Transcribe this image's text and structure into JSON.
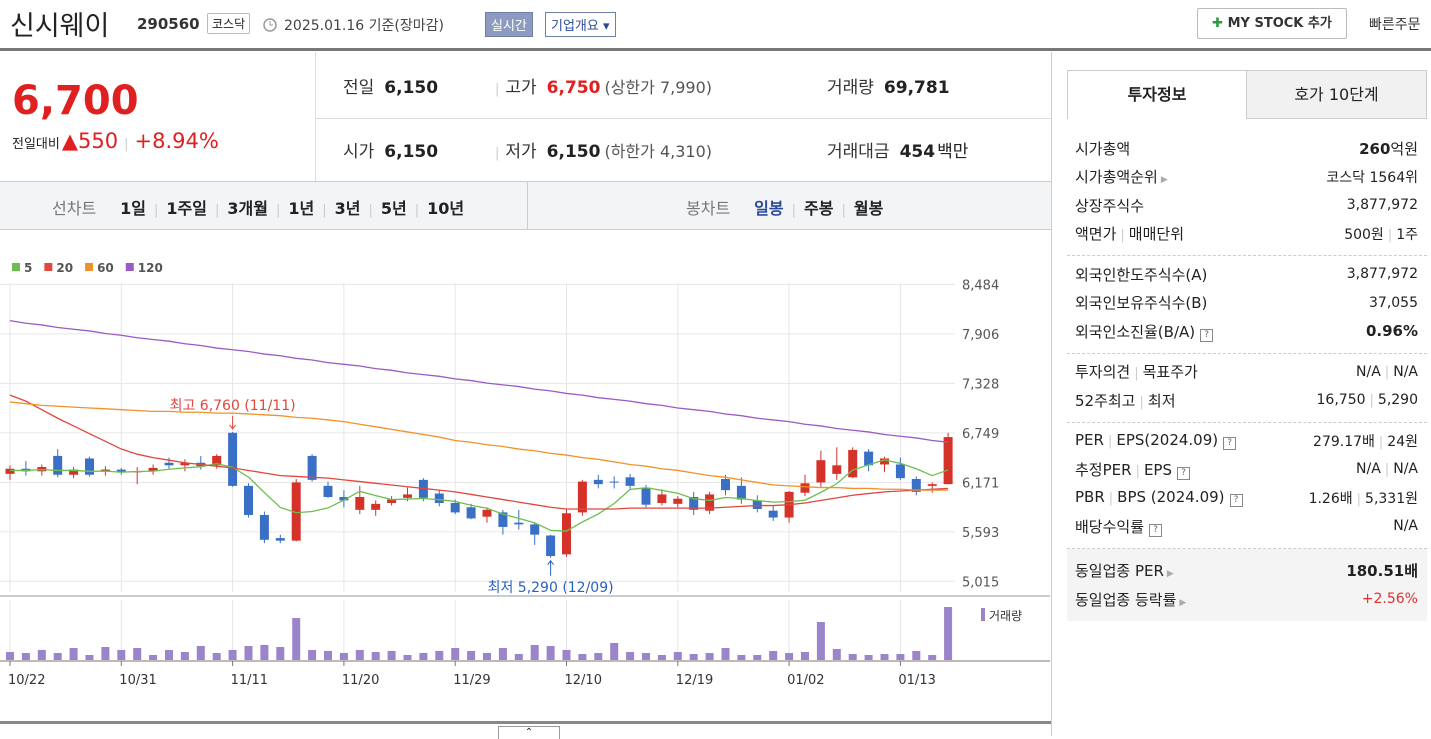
{
  "header": {
    "name": "신시웨이",
    "code": "290560",
    "market": "코스닥",
    "date": "2025.01.16",
    "basis": "기준(장마감)",
    "realtime": "실시간",
    "overview": "기업개요",
    "mystock": "MY STOCK 추가",
    "quick_order": "빠른주문"
  },
  "quote": {
    "price": "6,700",
    "change_label": "전일대비",
    "change": "550",
    "change_rate": "+8.94%",
    "items": [
      {
        "label": "전일",
        "value": "6,150"
      },
      {
        "label": "고가",
        "value": "6,750",
        "note": "(상한가 7,990)"
      },
      {
        "label": "거래량",
        "value": "69,781"
      },
      {
        "label": "시가",
        "value": "6,150"
      },
      {
        "label": "저가",
        "value": "6,150",
        "note": "(하한가 4,310)"
      },
      {
        "label": "거래대금",
        "value": "454",
        "unit": "백만"
      }
    ]
  },
  "periods": {
    "line_label": "선차트",
    "line": [
      "1일",
      "1주일",
      "3개월",
      "1년",
      "3년",
      "5년",
      "10년"
    ],
    "candle_label": "봉차트",
    "candle": [
      "일봉",
      "주봉",
      "월봉"
    ]
  },
  "info": {
    "tabs": [
      "투자정보",
      "호가 10단계"
    ],
    "groups": [
      [
        {
          "label": [
            "시가총액"
          ],
          "value": [
            "260"
          ],
          "unit": "억원",
          "bold": true
        },
        {
          "label": [
            "시가총액순위"
          ],
          "arrow": true,
          "value": [
            "코스닥 1564위"
          ]
        },
        {
          "label": [
            "상장주식수"
          ],
          "value": [
            "3,877,972"
          ]
        },
        {
          "label": [
            "액면가",
            "매매단위"
          ],
          "value": [
            "500원",
            "1주"
          ]
        }
      ],
      [
        {
          "label": [
            "외국인한도주식수(A)"
          ],
          "value": [
            "3,877,972"
          ]
        },
        {
          "label": [
            "외국인보유주식수(B)"
          ],
          "value": [
            "37,055"
          ]
        },
        {
          "label": [
            "외국인소진율(B/A)"
          ],
          "help": true,
          "value": [
            "0.96%"
          ],
          "bold": true
        }
      ],
      [
        {
          "label": [
            "투자의견",
            "목표주가"
          ],
          "value": [
            "N/A",
            "N/A"
          ]
        },
        {
          "label": [
            "52주최고",
            "최저"
          ],
          "value": [
            "16,750",
            "5,290"
          ]
        }
      ],
      [
        {
          "label": [
            "PER",
            "EPS(2024.09)"
          ],
          "help": true,
          "value": [
            "279.17배",
            "24원"
          ]
        },
        {
          "label": [
            "추정PER",
            "EPS"
          ],
          "help": true,
          "value": [
            "N/A",
            "N/A"
          ]
        },
        {
          "label": [
            "PBR",
            "BPS (2024.09)"
          ],
          "help": true,
          "value": [
            "1.26배",
            "5,331원"
          ]
        },
        {
          "label": [
            "배당수익률"
          ],
          "help": true,
          "value": [
            "N/A"
          ]
        }
      ],
      [
        {
          "label": [
            "동일업종 PER"
          ],
          "arrow": true,
          "value": [
            "180.51배"
          ],
          "bold": true
        },
        {
          "label": [
            "동일업종 등락률"
          ],
          "arrow": true,
          "value": [
            "+2.56%"
          ],
          "color": "#e03030"
        }
      ]
    ]
  },
  "chart_data": {
    "type": "candlestick",
    "categories": [
      "10/22",
      null,
      null,
      null,
      null,
      null,
      null,
      "10/31",
      null,
      null,
      null,
      null,
      null,
      null,
      "11/11",
      null,
      null,
      null,
      null,
      null,
      null,
      "11/20",
      null,
      null,
      null,
      null,
      null,
      null,
      "11/29",
      null,
      null,
      null,
      null,
      null,
      null,
      "12/10",
      null,
      null,
      null,
      null,
      null,
      null,
      "12/19",
      null,
      null,
      null,
      null,
      null,
      null,
      "01/02",
      null,
      null,
      null,
      null,
      null,
      null,
      "01/13",
      null,
      null,
      null
    ],
    "open": [
      6270,
      6330,
      6300,
      6480,
      6260,
      6450,
      6300,
      6320,
      6290,
      6300,
      6400,
      6370,
      6400,
      6370,
      6750,
      6130,
      5790,
      5520,
      5490,
      6480,
      6130,
      6000,
      5850,
      5850,
      5930,
      5990,
      6200,
      6040,
      5930,
      5880,
      5770,
      5820,
      5700,
      5680,
      5550,
      5330,
      5820,
      6200,
      6180,
      6230,
      6110,
      5930,
      5920,
      6000,
      5840,
      6210,
      6130,
      5960,
      5840,
      5760,
      6050,
      6170,
      6270,
      6230,
      6530,
      6380,
      6380,
      6210,
      6130,
      6150
    ],
    "high": [
      6370,
      6420,
      6380,
      6560,
      6350,
      6470,
      6360,
      6340,
      6350,
      6380,
      6460,
      6440,
      6480,
      6500,
      6760,
      6160,
      5830,
      5560,
      6210,
      6500,
      6180,
      6080,
      6130,
      5960,
      6010,
      6110,
      6220,
      6080,
      5970,
      5920,
      5880,
      5850,
      5850,
      5700,
      5560,
      5860,
      6200,
      6260,
      6240,
      6270,
      6140,
      6090,
      6010,
      6060,
      6060,
      6260,
      6230,
      6020,
      5900,
      6070,
      6260,
      6540,
      6580,
      6580,
      6560,
      6470,
      6460,
      6240,
      6170,
      6750
    ],
    "low": [
      6200,
      6250,
      6250,
      6230,
      6220,
      6240,
      6250,
      6260,
      6150,
      6260,
      6330,
      6300,
      6320,
      6330,
      6120,
      5760,
      5460,
      5460,
      5480,
      6180,
      5990,
      5880,
      5800,
      5780,
      5900,
      5950,
      5950,
      5890,
      5800,
      5740,
      5700,
      5560,
      5620,
      5440,
      5290,
      5300,
      5780,
      6100,
      6100,
      6090,
      5880,
      5900,
      5880,
      5790,
      5800,
      6020,
      5920,
      5820,
      5720,
      5700,
      6010,
      6120,
      6200,
      6220,
      6300,
      6290,
      6200,
      6020,
      6050,
      6150
    ],
    "close": [
      6330,
      6300,
      6350,
      6260,
      6320,
      6260,
      6320,
      6290,
      6300,
      6340,
      6370,
      6400,
      6360,
      6480,
      6130,
      5790,
      5500,
      5490,
      6170,
      6200,
      6000,
      5960,
      6000,
      5920,
      5970,
      6030,
      5990,
      5930,
      5820,
      5750,
      5850,
      5650,
      5680,
      5560,
      5310,
      5810,
      6180,
      6150,
      6170,
      6130,
      5910,
      6030,
      5980,
      5850,
      6030,
      6080,
      5970,
      5860,
      5760,
      6060,
      6160,
      6430,
      6370,
      6550,
      6370,
      6450,
      6220,
      6060,
      6150,
      6700
    ],
    "volume": [
      10500,
      9200,
      13200,
      9200,
      15800,
      6600,
      17100,
      13200,
      15800,
      6600,
      13200,
      10500,
      18400,
      9200,
      13200,
      18400,
      19800,
      17100,
      55300,
      13200,
      11900,
      9200,
      13200,
      10500,
      11900,
      6600,
      9200,
      11900,
      15800,
      11900,
      9200,
      15800,
      7900,
      19800,
      18400,
      13200,
      7900,
      9200,
      22400,
      10500,
      9200,
      6600,
      10500,
      7900,
      9200,
      15800,
      6600,
      6600,
      11900,
      9200,
      10500,
      50000,
      14500,
      7900,
      6600,
      7900,
      7900,
      11900,
      6600,
      69781
    ],
    "volume_label": "거래량",
    "volume_color": "#9b84c9",
    "up_color": "#d5322a",
    "down_color": "#3a6fc6",
    "series": [
      {
        "name": "5",
        "color": "#6cbf4f",
        "values": [
          6310,
          6310,
          6320,
          6310,
          6310,
          6300,
          6302,
          6290,
          6298,
          6302,
          6324,
          6340,
          6354,
          6390,
          6348,
          6232,
          6052,
          5878,
          5816,
          5830,
          5872,
          5964,
          6066,
          6016,
          5970,
          5976,
          5982,
          5968,
          5948,
          5904,
          5868,
          5800,
          5750,
          5698,
          5610,
          5602,
          5708,
          5802,
          5924,
          6088,
          6108,
          6078,
          6044,
          5980,
          5960,
          5994,
          5982,
          5958,
          5940,
          5946,
          5962,
          6054,
          6156,
          6314,
          6376,
          6434,
          6392,
          6330,
          6250,
          6316
        ]
      },
      {
        "name": "20",
        "color": "#e0473d",
        "values": [
          7190,
          7120,
          7020,
          6920,
          6830,
          6740,
          6650,
          6560,
          6500,
          6460,
          6430,
          6400,
          6380,
          6360,
          6340,
          6310,
          6280,
          6250,
          6240,
          6230,
          6220,
          6200,
          6180,
          6160,
          6140,
          6120,
          6100,
          6080,
          6060,
          6030,
          6000,
          5970,
          5940,
          5910,
          5880,
          5860,
          5860,
          5860,
          5860,
          5870,
          5870,
          5870,
          5870,
          5870,
          5870,
          5880,
          5890,
          5900,
          5900,
          5910,
          5930,
          5960,
          5990,
          6020,
          6040,
          6060,
          6070,
          6080,
          6090,
          6100
        ]
      },
      {
        "name": "60",
        "color": "#f0922b",
        "values": [
          7110,
          7090,
          7070,
          7060,
          7050,
          7040,
          7030,
          7020,
          7010,
          7000,
          7000,
          6990,
          6990,
          6980,
          6980,
          6970,
          6960,
          6950,
          6930,
          6920,
          6900,
          6880,
          6850,
          6820,
          6790,
          6760,
          6730,
          6700,
          6660,
          6640,
          6610,
          6590,
          6560,
          6540,
          6510,
          6490,
          6460,
          6440,
          6410,
          6380,
          6360,
          6330,
          6310,
          6280,
          6250,
          6230,
          6200,
          6170,
          6140,
          6130,
          6120,
          6110,
          6110,
          6100,
          6100,
          6090,
          6090,
          6080,
          6080,
          6080
        ]
      },
      {
        "name": "120",
        "color": "#9a5bc4",
        "values": [
          8060,
          8030,
          8010,
          7980,
          7960,
          7940,
          7910,
          7890,
          7860,
          7840,
          7820,
          7790,
          7770,
          7740,
          7720,
          7700,
          7670,
          7650,
          7620,
          7600,
          7570,
          7550,
          7530,
          7500,
          7480,
          7450,
          7430,
          7410,
          7380,
          7360,
          7330,
          7310,
          7290,
          7260,
          7240,
          7210,
          7190,
          7160,
          7140,
          7120,
          7090,
          7070,
          7040,
          7020,
          7000,
          6970,
          6950,
          6920,
          6900,
          6880,
          6850,
          6830,
          6800,
          6780,
          6760,
          6730,
          6710,
          6690,
          6660,
          6640
        ]
      }
    ],
    "annotations": [
      "최고 6,760 (11/11)",
      "최저 5,290 (12/09)"
    ],
    "ylim": [
      4890,
      8500
    ],
    "yticks": [
      {
        "value": 8484,
        "label": "8,484"
      },
      {
        "value": 7906,
        "label": "7,906"
      },
      {
        "value": 7328,
        "label": "7,328"
      },
      {
        "value": 6749,
        "label": "6,749"
      },
      {
        "value": 6171,
        "label": "6,171"
      },
      {
        "value": 5593,
        "label": "5,593"
      },
      {
        "value": 5015,
        "label": "5,015"
      }
    ],
    "grid": true
  }
}
